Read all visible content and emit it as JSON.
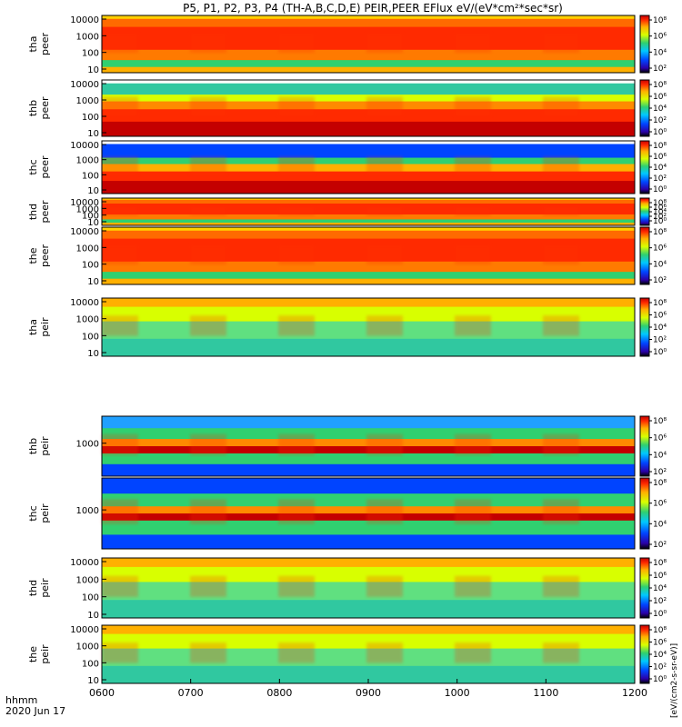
{
  "chart_data": {
    "type": "heatmap",
    "title": "P5, P1, P2, P3, P4 (TH-A,B,C,D,E) PEIR,PEER EFlux eV/(eV*cm²*sec*sr)",
    "time_axis": {
      "label_line1": "hhmm",
      "label_line2": "2020 Jun 17",
      "ticks": [
        "0600",
        "0700",
        "0800",
        "0900",
        "1000",
        "1100",
        "1200"
      ],
      "range": [
        "0600",
        "1200"
      ]
    },
    "colorbar": {
      "label": "[eV/(cm2-s-sr-eV)]",
      "tick_labels": [
        "10⁸",
        "10⁶",
        "10⁴",
        "10²",
        "10⁰"
      ]
    },
    "panels": [
      {
        "id": "tha_peer",
        "name_line1": "tha",
        "name_line2": "peer",
        "yticks": [
          "10000",
          "1000",
          "100",
          "10"
        ],
        "ylog": true,
        "cbticks": [
          "10⁸",
          "10⁶",
          "10⁴",
          "10²"
        ]
      },
      {
        "id": "thb_peer",
        "name_line1": "thb",
        "name_line2": "peer",
        "yticks": [
          "10000",
          "1000",
          "100",
          "10"
        ],
        "ylog": true,
        "cbticks": [
          "10⁸",
          "10⁶",
          "10⁴",
          "10²",
          "10⁰"
        ]
      },
      {
        "id": "thc_peer",
        "name_line1": "thc",
        "name_line2": "peer",
        "yticks": [
          "10000",
          "1000",
          "100",
          "10"
        ],
        "ylog": true,
        "cbticks": [
          "10⁸",
          "10⁶",
          "10⁴",
          "10²",
          "10⁰"
        ]
      },
      {
        "id": "thd_peer",
        "name_line1": "thd",
        "name_line2": "peer",
        "yticks": [
          "10000",
          "1000",
          "100",
          "10"
        ],
        "ylog": true,
        "cbticks": [
          "10⁸",
          "10⁶",
          "10⁴",
          "10²",
          "10⁰"
        ]
      },
      {
        "id": "the_peer",
        "name_line1": "the",
        "name_line2": "peer",
        "yticks": [
          "10000",
          "1000",
          "100",
          "10"
        ],
        "ylog": true,
        "cbticks": [
          "10⁸",
          "10⁶",
          "10⁴",
          "10²"
        ]
      },
      {
        "id": "tha_peir",
        "name_line1": "tha",
        "name_line2": "peir",
        "yticks": [
          "10000",
          "1000",
          "100",
          "10"
        ],
        "ylog": true,
        "cbticks": [
          "10⁸",
          "10⁶",
          "10⁴",
          "10²",
          "10⁰"
        ]
      },
      {
        "id": "thb_peir",
        "name_line1": "thb",
        "name_line2": "peir",
        "yticks": [
          "1000"
        ],
        "ylog": true,
        "cbticks": [
          "10⁸",
          "10⁶",
          "10⁴",
          "10²"
        ]
      },
      {
        "id": "thc_peir",
        "name_line1": "thc",
        "name_line2": "peir",
        "yticks": [
          "1000"
        ],
        "ylog": true,
        "cbticks": [
          "10⁸",
          "10⁶",
          "10⁴",
          "10²"
        ]
      },
      {
        "id": "thd_peir",
        "name_line1": "thd",
        "name_line2": "peir",
        "yticks": [
          "10000",
          "1000",
          "100",
          "10"
        ],
        "ylog": true,
        "cbticks": [
          "10⁸",
          "10⁶",
          "10⁴",
          "10²",
          "10⁰"
        ]
      },
      {
        "id": "the_peir",
        "name_line1": "the",
        "name_line2": "peir",
        "yticks": [
          "10000",
          "1000",
          "100",
          "10"
        ],
        "ylog": true,
        "cbticks": [
          "10⁸",
          "10⁶",
          "10⁴",
          "10²",
          "10⁰"
        ]
      }
    ]
  }
}
